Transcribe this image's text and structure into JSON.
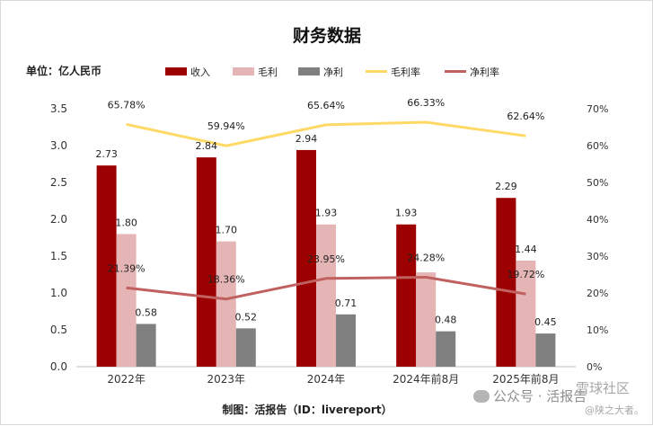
{
  "chart_data": {
    "type": "bar",
    "title": "财务数据",
    "unit_label": "单位：亿人民币",
    "source": "制图：活报告（ID：livereport）",
    "categories": [
      "2022年",
      "2023年",
      "2024年",
      "2024年前8月",
      "2025年前8月"
    ],
    "series": [
      {
        "name": "收入",
        "kind": "bar",
        "axis": "left",
        "color": "#9c0000",
        "values": [
          2.73,
          2.84,
          2.94,
          1.93,
          2.29
        ],
        "labels": [
          "2.73",
          "2.84",
          "2.94",
          "1.93",
          "2.29"
        ]
      },
      {
        "name": "毛利",
        "kind": "bar",
        "axis": "left",
        "color": "#e5b5b5",
        "values": [
          1.8,
          1.7,
          1.93,
          1.28,
          1.44
        ],
        "labels": [
          "1.80",
          "1.70",
          "1.93",
          "",
          "1.44"
        ]
      },
      {
        "name": "净利",
        "kind": "bar",
        "axis": "left",
        "color": "#808080",
        "values": [
          0.58,
          0.52,
          0.71,
          0.48,
          0.45
        ],
        "labels": [
          "0.58",
          "0.52",
          "0.71",
          "0.48",
          "0.45"
        ]
      },
      {
        "name": "毛利率",
        "kind": "line",
        "axis": "right",
        "color": "#ffd966",
        "values": [
          65.78,
          59.94,
          65.64,
          66.33,
          62.64
        ],
        "labels": [
          "65.78%",
          "59.94%",
          "65.64%",
          "66.33%",
          "62.64%"
        ]
      },
      {
        "name": "净利率",
        "kind": "line",
        "axis": "right",
        "color": "#c0605f",
        "values": [
          21.39,
          18.36,
          23.95,
          24.28,
          19.72
        ],
        "labels": [
          "21.39%",
          "18.36%",
          "23.95%",
          "24.28%",
          "19.72%"
        ]
      }
    ],
    "y_left": {
      "min": 0,
      "max": 3.5,
      "ticks": [
        "0.0",
        "0.5",
        "1.0",
        "1.5",
        "2.0",
        "2.5",
        "3.0",
        "3.5"
      ]
    },
    "y_right": {
      "min": 0,
      "max": 70,
      "ticks": [
        "0%",
        "10%",
        "20%",
        "30%",
        "40%",
        "50%",
        "60%",
        "70%"
      ]
    },
    "legend_position": "top"
  },
  "watermark": {
    "platform": "公众号 · 活报告",
    "community": "雪球社区",
    "handle": "@陕之大者。"
  }
}
